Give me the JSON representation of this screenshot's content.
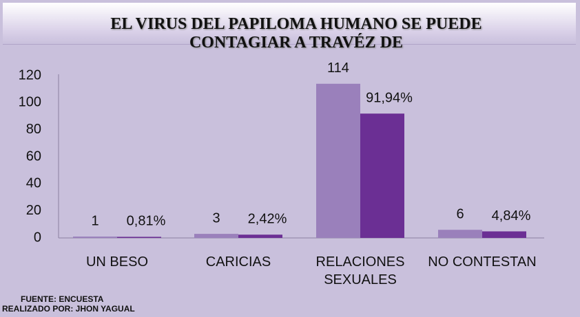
{
  "chart_data": {
    "type": "bar",
    "title": "EL VIRUS DEL PAPILOMA HUMANO SE PUEDE CONTAGIAR A TRAVÉZ DE",
    "categories": [
      "UN BESO",
      "CARICIAS",
      "RELACIONES SEXUALES",
      "NO CONTESTAN"
    ],
    "series": [
      {
        "color": "#9a80bb",
        "values": [
          1,
          3,
          114,
          6
        ]
      },
      {
        "color": "#6b2f94",
        "values": [
          0.81,
          2.42,
          91.94,
          4.84
        ],
        "value_labels": [
          "0,81%",
          "2,42%",
          "91,94%",
          "4,84%"
        ]
      }
    ],
    "ylim": [
      0,
      120
    ],
    "yticks": [
      0,
      20,
      40,
      60,
      80,
      100,
      120
    ],
    "grid": false,
    "source": "FUENTE: ENCUESTA",
    "credit": "REALIZADO POR: JHON YAGUAL"
  }
}
